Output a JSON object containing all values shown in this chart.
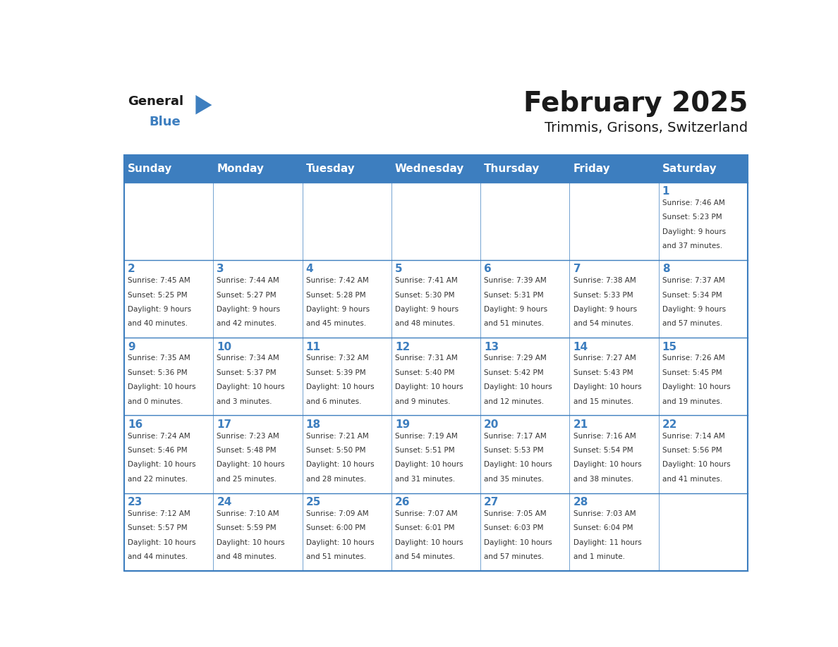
{
  "title": "February 2025",
  "subtitle": "Trimmis, Grisons, Switzerland",
  "header_bg": "#3d7ebf",
  "header_text": "#ffffff",
  "cell_bg": "#ffffff",
  "border_color": "#3d7ebf",
  "day_names": [
    "Sunday",
    "Monday",
    "Tuesday",
    "Wednesday",
    "Thursday",
    "Friday",
    "Saturday"
  ],
  "title_color": "#1a1a1a",
  "subtitle_color": "#1a1a1a",
  "day_number_color": "#3d7ebf",
  "cell_text_color": "#333333",
  "logo_general_color": "#1a1a1a",
  "logo_blue_color": "#3d7ebf",
  "weeks": [
    [
      {
        "day": 0,
        "text": ""
      },
      {
        "day": 0,
        "text": ""
      },
      {
        "day": 0,
        "text": ""
      },
      {
        "day": 0,
        "text": ""
      },
      {
        "day": 0,
        "text": ""
      },
      {
        "day": 0,
        "text": ""
      },
      {
        "day": 1,
        "text": "Sunrise: 7:46 AM\nSunset: 5:23 PM\nDaylight: 9 hours\nand 37 minutes."
      }
    ],
    [
      {
        "day": 2,
        "text": "Sunrise: 7:45 AM\nSunset: 5:25 PM\nDaylight: 9 hours\nand 40 minutes."
      },
      {
        "day": 3,
        "text": "Sunrise: 7:44 AM\nSunset: 5:27 PM\nDaylight: 9 hours\nand 42 minutes."
      },
      {
        "day": 4,
        "text": "Sunrise: 7:42 AM\nSunset: 5:28 PM\nDaylight: 9 hours\nand 45 minutes."
      },
      {
        "day": 5,
        "text": "Sunrise: 7:41 AM\nSunset: 5:30 PM\nDaylight: 9 hours\nand 48 minutes."
      },
      {
        "day": 6,
        "text": "Sunrise: 7:39 AM\nSunset: 5:31 PM\nDaylight: 9 hours\nand 51 minutes."
      },
      {
        "day": 7,
        "text": "Sunrise: 7:38 AM\nSunset: 5:33 PM\nDaylight: 9 hours\nand 54 minutes."
      },
      {
        "day": 8,
        "text": "Sunrise: 7:37 AM\nSunset: 5:34 PM\nDaylight: 9 hours\nand 57 minutes."
      }
    ],
    [
      {
        "day": 9,
        "text": "Sunrise: 7:35 AM\nSunset: 5:36 PM\nDaylight: 10 hours\nand 0 minutes."
      },
      {
        "day": 10,
        "text": "Sunrise: 7:34 AM\nSunset: 5:37 PM\nDaylight: 10 hours\nand 3 minutes."
      },
      {
        "day": 11,
        "text": "Sunrise: 7:32 AM\nSunset: 5:39 PM\nDaylight: 10 hours\nand 6 minutes."
      },
      {
        "day": 12,
        "text": "Sunrise: 7:31 AM\nSunset: 5:40 PM\nDaylight: 10 hours\nand 9 minutes."
      },
      {
        "day": 13,
        "text": "Sunrise: 7:29 AM\nSunset: 5:42 PM\nDaylight: 10 hours\nand 12 minutes."
      },
      {
        "day": 14,
        "text": "Sunrise: 7:27 AM\nSunset: 5:43 PM\nDaylight: 10 hours\nand 15 minutes."
      },
      {
        "day": 15,
        "text": "Sunrise: 7:26 AM\nSunset: 5:45 PM\nDaylight: 10 hours\nand 19 minutes."
      }
    ],
    [
      {
        "day": 16,
        "text": "Sunrise: 7:24 AM\nSunset: 5:46 PM\nDaylight: 10 hours\nand 22 minutes."
      },
      {
        "day": 17,
        "text": "Sunrise: 7:23 AM\nSunset: 5:48 PM\nDaylight: 10 hours\nand 25 minutes."
      },
      {
        "day": 18,
        "text": "Sunrise: 7:21 AM\nSunset: 5:50 PM\nDaylight: 10 hours\nand 28 minutes."
      },
      {
        "day": 19,
        "text": "Sunrise: 7:19 AM\nSunset: 5:51 PM\nDaylight: 10 hours\nand 31 minutes."
      },
      {
        "day": 20,
        "text": "Sunrise: 7:17 AM\nSunset: 5:53 PM\nDaylight: 10 hours\nand 35 minutes."
      },
      {
        "day": 21,
        "text": "Sunrise: 7:16 AM\nSunset: 5:54 PM\nDaylight: 10 hours\nand 38 minutes."
      },
      {
        "day": 22,
        "text": "Sunrise: 7:14 AM\nSunset: 5:56 PM\nDaylight: 10 hours\nand 41 minutes."
      }
    ],
    [
      {
        "day": 23,
        "text": "Sunrise: 7:12 AM\nSunset: 5:57 PM\nDaylight: 10 hours\nand 44 minutes."
      },
      {
        "day": 24,
        "text": "Sunrise: 7:10 AM\nSunset: 5:59 PM\nDaylight: 10 hours\nand 48 minutes."
      },
      {
        "day": 25,
        "text": "Sunrise: 7:09 AM\nSunset: 6:00 PM\nDaylight: 10 hours\nand 51 minutes."
      },
      {
        "day": 26,
        "text": "Sunrise: 7:07 AM\nSunset: 6:01 PM\nDaylight: 10 hours\nand 54 minutes."
      },
      {
        "day": 27,
        "text": "Sunrise: 7:05 AM\nSunset: 6:03 PM\nDaylight: 10 hours\nand 57 minutes."
      },
      {
        "day": 28,
        "text": "Sunrise: 7:03 AM\nSunset: 6:04 PM\nDaylight: 11 hours\nand 1 minute."
      },
      {
        "day": 0,
        "text": ""
      }
    ]
  ]
}
